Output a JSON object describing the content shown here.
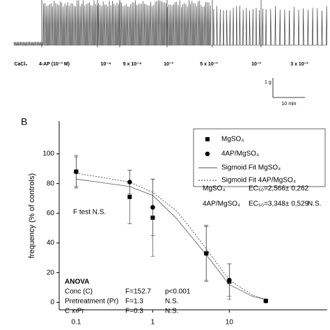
{
  "panel_a": {
    "labels": [
      "CaCl₂",
      "4-AP (10⁻³ M)",
      "10⁻⁴",
      "5 x 10⁻⁴",
      "10⁻³",
      "5 x 10⁻³",
      "10⁻²",
      "3 x 10⁻²"
    ],
    "scale_bar": [
      "1 g",
      "10 min"
    ]
  },
  "chart_data": {
    "type": "scatter",
    "panel_label": "B",
    "ylabel": "frequency (% of controls)",
    "log_x": true,
    "xlim": [
      0.06,
      190
    ],
    "xticks": [
      0.1,
      1,
      10
    ],
    "ylim": [
      -5,
      122
    ],
    "yticks": [
      0,
      20,
      40,
      60,
      80,
      100
    ],
    "series": [
      {
        "name": "MgSO₄",
        "color": "#000000",
        "marker": "square",
        "x": [
          0.1,
          0.5,
          1,
          5,
          10,
          30
        ],
        "values": [
          88,
          71,
          57,
          33,
          14,
          1
        ],
        "errors": [
          11,
          18,
          26,
          18,
          12,
          1
        ]
      },
      {
        "name": "4AP/MgSO₄",
        "color": "#000000",
        "marker": "circle",
        "x": [
          0.1,
          0.5,
          1,
          5,
          10,
          30
        ],
        "values": [
          88,
          81,
          64,
          33,
          15,
          1
        ],
        "errors": [
          10,
          8,
          19,
          19,
          11,
          1
        ]
      }
    ],
    "fits": [
      {
        "name": "Sigmoid Fit MgSO₄",
        "color": "#555555",
        "style": "solid",
        "x": [
          0.1,
          0.5,
          1,
          2,
          3,
          5,
          10,
          20,
          30
        ],
        "values": [
          83,
          78,
          72,
          57,
          46,
          32,
          12,
          4,
          2
        ]
      },
      {
        "name": "Sigmoid Fit 4AP/MgSO₄",
        "color": "#333333",
        "style": "dashed",
        "x": [
          0.1,
          0.5,
          1,
          2,
          3,
          5,
          10,
          20,
          30
        ],
        "values": [
          87,
          81,
          74,
          62,
          51,
          36,
          15,
          5,
          2
        ]
      }
    ],
    "ec50": [
      {
        "name": "MgSO₄",
        "value": "EC₅₀=2,566± 0,262"
      },
      {
        "name": "4AP/MgSO₄",
        "value": "EC₅₀=3,348± 0,529",
        "note": "N.S."
      }
    ],
    "f_test": "F test  N.S.",
    "anova": {
      "title": "ANOVA",
      "rows": [
        [
          "Conc (C)",
          "F=152.7",
          "p<0.001"
        ],
        [
          "Pretreatment (Pr)",
          "F=1.3",
          "N.S."
        ],
        [
          "C x Pr",
          "F=0.3",
          "N.S."
        ]
      ]
    }
  }
}
